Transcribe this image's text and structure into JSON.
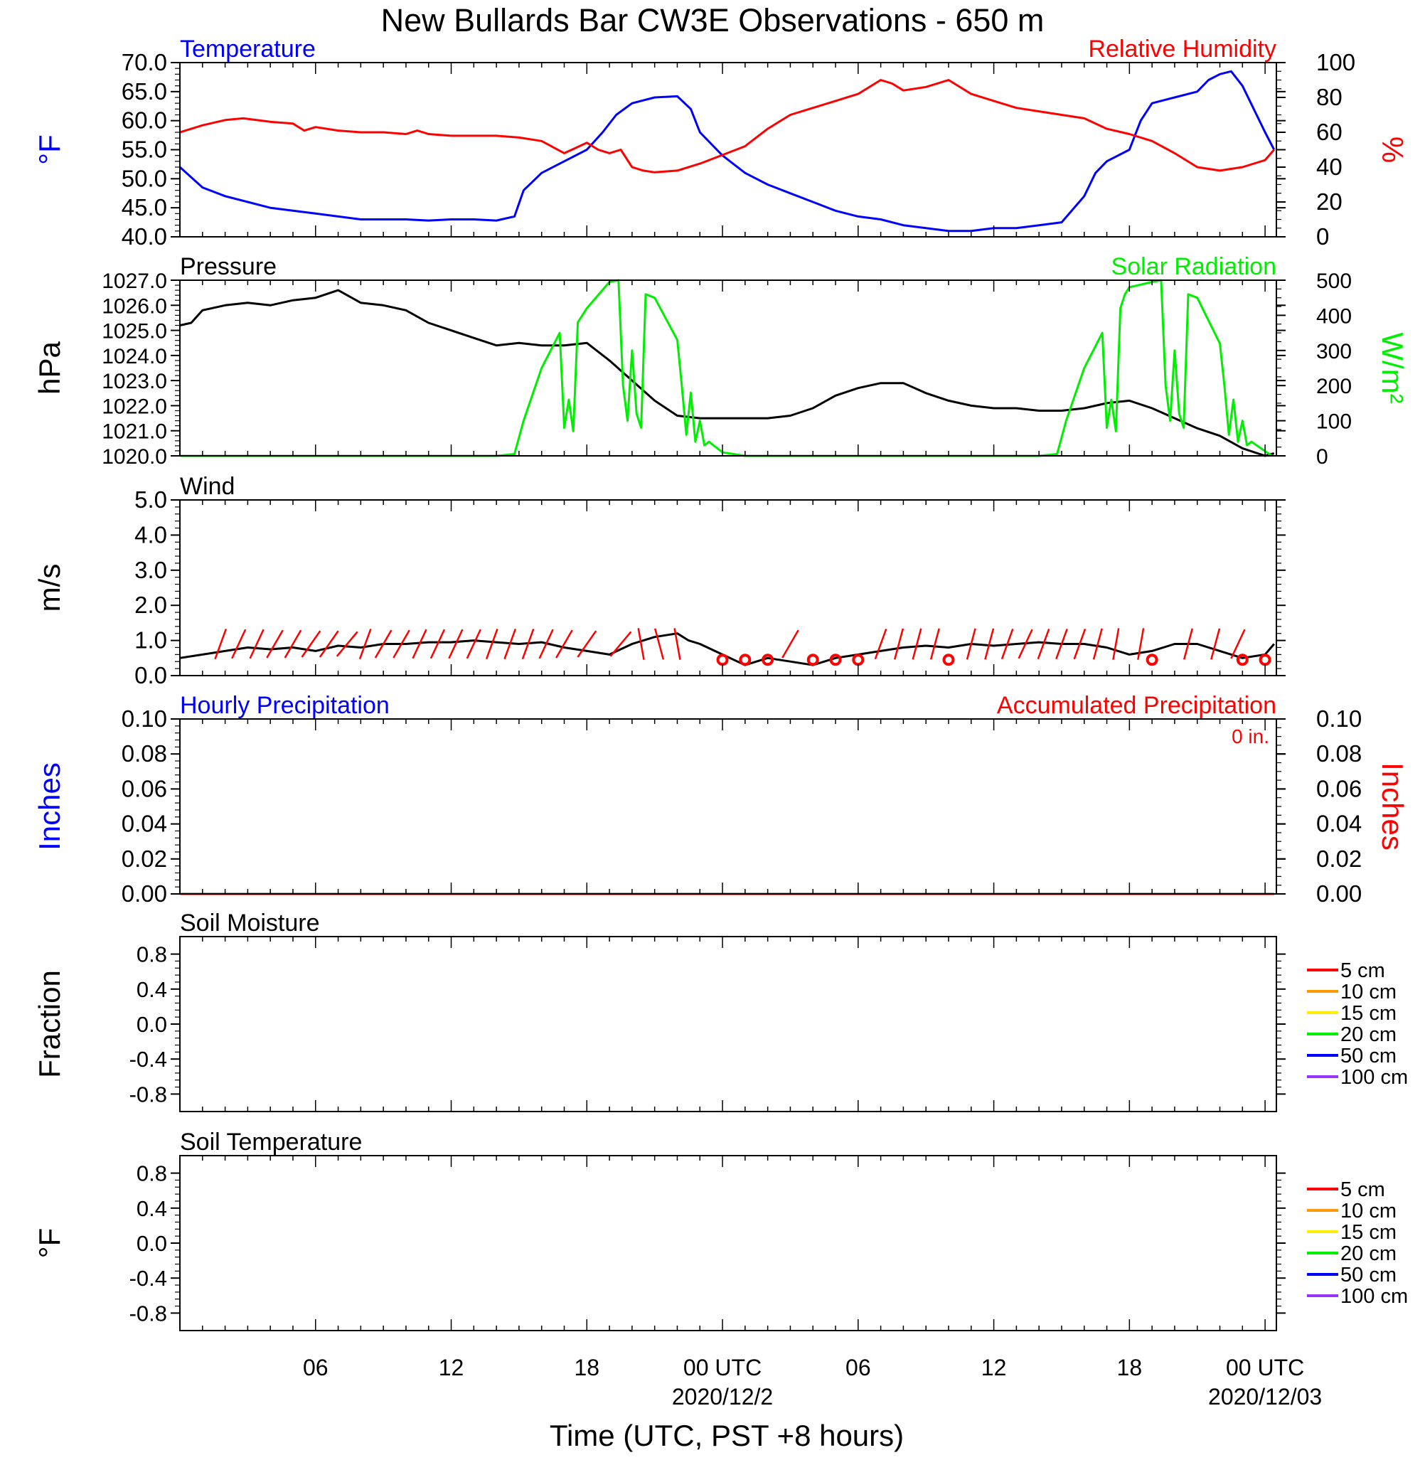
{
  "title": "New Bullards Bar CW3E Observations - 650 m",
  "xlabel": "Time (UTC, PST +8 hours)",
  "x_ticks": [
    {
      "hour": 6,
      "label": "06",
      "sub": ""
    },
    {
      "hour": 12,
      "label": "12",
      "sub": ""
    },
    {
      "hour": 18,
      "label": "18",
      "sub": ""
    },
    {
      "hour": 24,
      "label": "00 UTC",
      "sub": "2020/12/2"
    },
    {
      "hour": 30,
      "label": "06",
      "sub": ""
    },
    {
      "hour": 36,
      "label": "12",
      "sub": ""
    },
    {
      "hour": 42,
      "label": "18",
      "sub": ""
    },
    {
      "hour": 48,
      "label": "00 UTC",
      "sub": "2020/12/03"
    }
  ],
  "colors": {
    "temperature": "#0000ff",
    "humidity": "#ff0000",
    "pressure": "#000000",
    "solar": "#00ee00",
    "wind": "#000000",
    "barb": "#ff0000",
    "precip_hourly": "#0000ff",
    "precip_accum": "#ff0000"
  },
  "chart_data": [
    {
      "type": "line",
      "id": "temp_rh",
      "left_title": "Temperature",
      "right_title": "Relative Humidity",
      "ylabel_left": "°F",
      "ylabel_right": "%",
      "ylim_left": [
        40,
        70
      ],
      "ylim_right": [
        0,
        100
      ],
      "yticks_left": [
        "70.0",
        "65.0",
        "60.0",
        "55.0",
        "50.0",
        "45.0",
        "40.0"
      ],
      "yticks_right": [
        "100",
        "80",
        "60",
        "40",
        "20",
        "0"
      ],
      "xlim": [
        0,
        48.5
      ],
      "series": [
        {
          "name": "Temperature",
          "axis": "left",
          "color": "#0000ff",
          "x": [
            0,
            1,
            2,
            3,
            4,
            5,
            6,
            7,
            8,
            9,
            10,
            11,
            12,
            13,
            14,
            14.8,
            15.2,
            16,
            17,
            18,
            18.7,
            19.3,
            20,
            21,
            22,
            22.6,
            23,
            24,
            25,
            26,
            27,
            28,
            29,
            30,
            31,
            32,
            33,
            34,
            35,
            36,
            37,
            38,
            39,
            40,
            40.5,
            41,
            42,
            42.5,
            43,
            44,
            45,
            45.5,
            46,
            46.5,
            47,
            47.5,
            48,
            48.4
          ],
          "y": [
            52,
            48.5,
            47,
            46,
            45,
            44.5,
            44,
            43.5,
            43,
            43,
            43,
            42.8,
            43,
            43,
            42.8,
            43.5,
            48,
            51,
            53,
            55,
            58,
            61,
            63,
            64,
            64.2,
            62,
            58,
            54,
            51,
            49,
            47.5,
            46,
            44.5,
            43.5,
            43,
            42,
            41.5,
            41,
            41,
            41.5,
            41.5,
            42,
            42.5,
            47,
            51,
            53,
            55,
            60,
            63,
            64,
            65,
            67,
            68,
            68.5,
            66,
            62,
            58,
            55
          ]
        },
        {
          "name": "Relative Humidity",
          "axis": "right",
          "color": "#ff0000",
          "x": [
            0,
            1,
            2,
            2.8,
            4,
            5,
            5.5,
            6,
            7,
            8,
            9,
            10,
            10.5,
            11,
            12,
            13,
            14,
            15,
            16,
            17,
            17.5,
            18,
            18.5,
            19,
            19.5,
            20,
            20.5,
            21,
            22,
            23,
            24,
            25,
            26,
            27,
            28,
            29,
            30,
            31,
            31.5,
            32,
            33,
            34,
            35,
            36,
            37,
            38,
            39,
            40,
            41,
            42,
            43,
            44,
            45,
            46,
            47,
            48,
            48.4
          ],
          "y": [
            60,
            64,
            67,
            68,
            66,
            65,
            61,
            63,
            61,
            60,
            60,
            59,
            61,
            59,
            58,
            58,
            58,
            57,
            55,
            48,
            51,
            54,
            50,
            48,
            50,
            40,
            38,
            37,
            38,
            42,
            47,
            52,
            62,
            70,
            74,
            78,
            82,
            90,
            88,
            84,
            86,
            90,
            82,
            78,
            74,
            72,
            70,
            68,
            62,
            59,
            55,
            48,
            40,
            38,
            40,
            44,
            50
          ]
        }
      ]
    },
    {
      "type": "line",
      "id": "press_solar",
      "left_title": "Pressure",
      "right_title": "Solar Radiation",
      "ylabel_left": "hPa",
      "ylabel_right": "W/m²",
      "ylim_left": [
        1020,
        1027
      ],
      "ylim_right": [
        0,
        500
      ],
      "yticks_left": [
        "1027.0",
        "1026.0",
        "1025.0",
        "1024.0",
        "1023.0",
        "1022.0",
        "1021.0",
        "1020.0"
      ],
      "yticks_right": [
        "500",
        "400",
        "300",
        "200",
        "100",
        "0"
      ],
      "xlim": [
        0,
        48.5
      ],
      "series": [
        {
          "name": "Pressure",
          "axis": "left",
          "color": "#000000",
          "x": [
            0,
            0.5,
            1,
            2,
            3,
            4,
            5,
            6,
            7,
            8,
            9,
            10,
            11,
            12,
            13,
            14,
            15,
            16,
            17,
            18,
            19,
            20,
            21,
            22,
            23,
            24,
            25,
            26,
            27,
            28,
            29,
            30,
            31,
            32,
            33,
            34,
            35,
            36,
            37,
            38,
            39,
            40,
            41,
            42,
            43,
            44,
            45,
            46,
            47,
            48,
            48.4
          ],
          "y": [
            1025.2,
            1025.3,
            1025.8,
            1026,
            1026.1,
            1026.0,
            1026.2,
            1026.3,
            1026.6,
            1026.1,
            1026.0,
            1025.8,
            1025.3,
            1025.0,
            1024.7,
            1024.4,
            1024.5,
            1024.4,
            1024.4,
            1024.5,
            1023.8,
            1023.0,
            1022.2,
            1021.6,
            1021.5,
            1021.5,
            1021.5,
            1021.5,
            1021.6,
            1021.9,
            1022.4,
            1022.7,
            1022.9,
            1022.9,
            1022.5,
            1022.2,
            1022.0,
            1021.9,
            1021.9,
            1021.8,
            1021.8,
            1021.9,
            1022.1,
            1022.2,
            1021.9,
            1021.5,
            1021.1,
            1020.8,
            1020.3,
            1020.0,
            1020.1
          ]
        },
        {
          "name": "Solar Radiation",
          "axis": "right",
          "color": "#00ee00",
          "x": [
            0,
            14,
            14.8,
            15.2,
            16,
            16.8,
            17,
            17.2,
            17.4,
            17.6,
            17.8,
            18,
            19,
            19.4,
            19.6,
            19.8,
            20,
            20.2,
            20.4,
            20.6,
            21,
            22,
            22.2,
            22.4,
            22.6,
            22.8,
            23,
            23.2,
            23.4,
            24,
            25,
            38,
            38.8,
            39.2,
            40,
            40.8,
            41,
            41.2,
            41.4,
            41.6,
            41.8,
            42,
            43,
            43.4,
            43.6,
            43.8,
            44,
            44.2,
            44.4,
            44.6,
            45,
            46,
            46.2,
            46.4,
            46.6,
            46.8,
            47,
            47.2,
            47.4,
            48.3
          ],
          "y": [
            0,
            0,
            5,
            100,
            250,
            350,
            80,
            160,
            70,
            380,
            400,
            420,
            495,
            500,
            200,
            100,
            300,
            120,
            80,
            460,
            450,
            330,
            200,
            60,
            180,
            40,
            100,
            30,
            40,
            10,
            0,
            0,
            5,
            100,
            250,
            350,
            80,
            160,
            70,
            420,
            460,
            480,
            495,
            500,
            200,
            100,
            300,
            120,
            80,
            460,
            450,
            320,
            200,
            60,
            160,
            40,
            100,
            30,
            40,
            0
          ]
        }
      ]
    },
    {
      "type": "line",
      "id": "wind",
      "left_title": "Wind",
      "ylabel_left": "m/s",
      "ylim_left": [
        0,
        5
      ],
      "yticks_left": [
        "5.0",
        "4.0",
        "3.0",
        "2.0",
        "1.0",
        "0.0"
      ],
      "xlim": [
        0,
        48.5
      ],
      "series": [
        {
          "name": "Wind",
          "axis": "left",
          "color": "#000000",
          "x": [
            0,
            1,
            2,
            3,
            4,
            5,
            6,
            7,
            8,
            9,
            10,
            11,
            12,
            13,
            14,
            15,
            16,
            17,
            18,
            19,
            20,
            21,
            22,
            22.5,
            23,
            24,
            25,
            26,
            27,
            28,
            29,
            30,
            31,
            32,
            33,
            34,
            35,
            36,
            37,
            38,
            39,
            40,
            41,
            42,
            43,
            44,
            45,
            46,
            47,
            48,
            48.4
          ],
          "y": [
            0.5,
            0.6,
            0.7,
            0.8,
            0.75,
            0.8,
            0.7,
            0.85,
            0.8,
            0.9,
            0.9,
            0.95,
            0.95,
            1.0,
            0.95,
            0.9,
            0.95,
            0.8,
            0.7,
            0.6,
            0.9,
            1.1,
            1.2,
            1.0,
            0.9,
            0.6,
            0.3,
            0.5,
            0.4,
            0.3,
            0.5,
            0.6,
            0.7,
            0.8,
            0.85,
            0.8,
            0.9,
            0.85,
            0.9,
            0.95,
            0.9,
            0.9,
            0.8,
            0.6,
            0.7,
            0.9,
            0.9,
            0.7,
            0.5,
            0.6,
            0.9
          ]
        }
      ],
      "barbs": [
        {
          "x": 1.8,
          "calm": false,
          "dir": -20
        },
        {
          "x": 2.6,
          "calm": false,
          "dir": -25
        },
        {
          "x": 3.4,
          "calm": false,
          "dir": -25
        },
        {
          "x": 4.2,
          "calm": false,
          "dir": -30
        },
        {
          "x": 5.0,
          "calm": false,
          "dir": -30
        },
        {
          "x": 5.8,
          "calm": false,
          "dir": -35
        },
        {
          "x": 6.6,
          "calm": false,
          "dir": -35
        },
        {
          "x": 7.4,
          "calm": false,
          "dir": -40
        },
        {
          "x": 8.2,
          "calm": false,
          "dir": -20
        },
        {
          "x": 9.0,
          "calm": false,
          "dir": -30
        },
        {
          "x": 9.8,
          "calm": false,
          "dir": -30
        },
        {
          "x": 10.6,
          "calm": false,
          "dir": -25
        },
        {
          "x": 11.4,
          "calm": false,
          "dir": -25
        },
        {
          "x": 12.2,
          "calm": false,
          "dir": -25
        },
        {
          "x": 13.0,
          "calm": false,
          "dir": -25
        },
        {
          "x": 13.8,
          "calm": false,
          "dir": -20
        },
        {
          "x": 14.6,
          "calm": false,
          "dir": -20
        },
        {
          "x": 15.4,
          "calm": false,
          "dir": -20
        },
        {
          "x": 16.2,
          "calm": false,
          "dir": -25
        },
        {
          "x": 17.0,
          "calm": false,
          "dir": -30
        },
        {
          "x": 18.0,
          "calm": false,
          "dir": -35
        },
        {
          "x": 19.5,
          "calm": false,
          "dir": -40
        },
        {
          "x": 20.4,
          "calm": false,
          "dir": 10
        },
        {
          "x": 21.2,
          "calm": false,
          "dir": 15
        },
        {
          "x": 22.0,
          "calm": false,
          "dir": 10
        },
        {
          "x": 24.0,
          "calm": true
        },
        {
          "x": 25.0,
          "calm": true
        },
        {
          "x": 26.0,
          "calm": true
        },
        {
          "x": 27.0,
          "calm": false,
          "dir": -30
        },
        {
          "x": 28.0,
          "calm": true
        },
        {
          "x": 29.0,
          "calm": true
        },
        {
          "x": 30.0,
          "calm": true
        },
        {
          "x": 31.0,
          "calm": false,
          "dir": -20
        },
        {
          "x": 31.8,
          "calm": false,
          "dir": -15
        },
        {
          "x": 32.6,
          "calm": false,
          "dir": -15
        },
        {
          "x": 33.4,
          "calm": false,
          "dir": -15
        },
        {
          "x": 34.0,
          "calm": true
        },
        {
          "x": 35.0,
          "calm": false,
          "dir": -15
        },
        {
          "x": 35.8,
          "calm": false,
          "dir": -15
        },
        {
          "x": 36.6,
          "calm": false,
          "dir": -20
        },
        {
          "x": 37.4,
          "calm": false,
          "dir": -25
        },
        {
          "x": 38.2,
          "calm": false,
          "dir": -20
        },
        {
          "x": 39.0,
          "calm": false,
          "dir": -20
        },
        {
          "x": 39.8,
          "calm": false,
          "dir": -20
        },
        {
          "x": 40.6,
          "calm": false,
          "dir": -15
        },
        {
          "x": 41.4,
          "calm": false,
          "dir": -10
        },
        {
          "x": 42.5,
          "calm": false,
          "dir": -10
        },
        {
          "x": 43.0,
          "calm": true
        },
        {
          "x": 44.6,
          "calm": false,
          "dir": -15
        },
        {
          "x": 45.8,
          "calm": false,
          "dir": -15
        },
        {
          "x": 46.8,
          "calm": false,
          "dir": -25
        },
        {
          "x": 47.0,
          "calm": true
        },
        {
          "x": 48.0,
          "calm": true
        }
      ]
    },
    {
      "type": "line",
      "id": "precip",
      "left_title": "Hourly Precipitation",
      "right_title": "Accumulated Precipitation",
      "annotation": "0 in.",
      "ylabel_left": "Inches",
      "ylabel_right": "Inches",
      "ylim_left": [
        0,
        0.1
      ],
      "ylim_right": [
        0,
        0.1
      ],
      "yticks_left": [
        "0.10",
        "0.08",
        "0.06",
        "0.04",
        "0.02",
        "0.00"
      ],
      "yticks_right": [
        "0.10",
        "0.08",
        "0.06",
        "0.04",
        "0.02",
        "0.00"
      ],
      "xlim": [
        0,
        48.5
      ],
      "series": [
        {
          "name": "Accumulated Precipitation",
          "axis": "right",
          "color": "#ff0000",
          "x": [
            0,
            48.4
          ],
          "y": [
            0,
            0
          ]
        }
      ]
    },
    {
      "type": "line",
      "id": "soil_moist",
      "left_title": "Soil Moisture",
      "ylabel_left": "Fraction",
      "ylim_left": [
        -1,
        1
      ],
      "yticks_left": [
        "0.8",
        "0.4",
        "0.0",
        "-0.4",
        "-0.8"
      ],
      "xlim": [
        0,
        48.5
      ],
      "legend": [
        {
          "label": "5 cm",
          "color": "#ff0000"
        },
        {
          "label": "10 cm",
          "color": "#ff9900"
        },
        {
          "label": "15 cm",
          "color": "#ffee00"
        },
        {
          "label": "20 cm",
          "color": "#00ee00"
        },
        {
          "label": "50 cm",
          "color": "#0000ff"
        },
        {
          "label": "100 cm",
          "color": "#9933ff"
        }
      ],
      "series": []
    },
    {
      "type": "line",
      "id": "soil_temp",
      "left_title": "Soil Temperature",
      "ylabel_left": "°F",
      "ylim_left": [
        -1,
        1
      ],
      "yticks_left": [
        "0.8",
        "0.4",
        "0.0",
        "-0.4",
        "-0.8"
      ],
      "xlim": [
        0,
        48.5
      ],
      "legend": [
        {
          "label": "5 cm",
          "color": "#ff0000"
        },
        {
          "label": "10 cm",
          "color": "#ff9900"
        },
        {
          "label": "15 cm",
          "color": "#ffee00"
        },
        {
          "label": "20 cm",
          "color": "#00ee00"
        },
        {
          "label": "50 cm",
          "color": "#0000ff"
        },
        {
          "label": "100 cm",
          "color": "#9933ff"
        }
      ],
      "series": []
    }
  ]
}
